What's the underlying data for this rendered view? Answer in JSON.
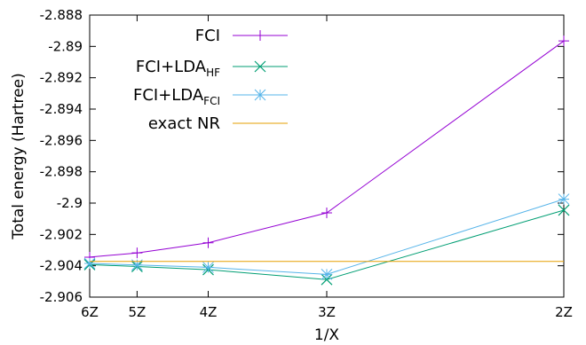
{
  "chart_data": {
    "type": "line",
    "xlabel": "1/X",
    "ylabel": "Total energy (Hartree)",
    "xticks": [
      {
        "label": "6Z",
        "value": 0.16667
      },
      {
        "label": "5Z",
        "value": 0.2
      },
      {
        "label": "4Z",
        "value": 0.25
      },
      {
        "label": "3Z",
        "value": 0.33333
      },
      {
        "label": "2Z",
        "value": 0.5
      }
    ],
    "xlim": [
      0.16667,
      0.5
    ],
    "ylim": [
      -2.906,
      -2.888
    ],
    "yticks": [
      "-2.888",
      "-2.89",
      "-2.892",
      "-2.894",
      "-2.896",
      "-2.898",
      "-2.9",
      "-2.902",
      "-2.904",
      "-2.906"
    ],
    "grid": false,
    "legend_position": "top-left",
    "series": [
      {
        "name": "FCI",
        "label_main": "FCI",
        "label_sub": "",
        "color": "#9400d3",
        "marker": "plus",
        "x": [
          0.16667,
          0.2,
          0.25,
          0.33333,
          0.5
        ],
        "y": [
          -2.90345,
          -2.90318,
          -2.90253,
          -2.90062,
          -2.88965
        ]
      },
      {
        "name": "FCI+LDA_HF",
        "label_main": "FCI+LDA",
        "label_sub": "HF",
        "color": "#009e73",
        "marker": "x",
        "x": [
          0.16667,
          0.2,
          0.25,
          0.33333,
          0.5
        ],
        "y": [
          -2.90393,
          -2.90405,
          -2.90425,
          -2.90488,
          -2.90045
        ]
      },
      {
        "name": "FCI+LDA_FCI",
        "label_main": "FCI+LDA",
        "label_sub": "FCI",
        "color": "#56b4e9",
        "marker": "star",
        "x": [
          0.16667,
          0.2,
          0.25,
          0.33333,
          0.5
        ],
        "y": [
          -2.90385,
          -2.90395,
          -2.9041,
          -2.90455,
          -2.89975
        ]
      },
      {
        "name": "exact NR",
        "label_main": "exact NR",
        "label_sub": "",
        "color": "#e69f00",
        "marker": "none",
        "x": [
          0.16667,
          0.5
        ],
        "y": [
          -2.90372,
          -2.90372
        ]
      }
    ]
  }
}
